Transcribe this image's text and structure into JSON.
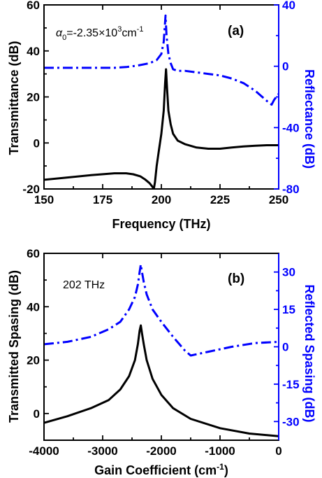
{
  "chart_data": [
    {
      "type": "line",
      "panel_label": "(a)",
      "annotation": {
        "greek": "α",
        "sub": "0",
        "pre": "=-2.35×10",
        "sup": "3",
        "unit": "cm",
        "unit_sup": "-1"
      },
      "xlabel": "Frequency (THz)",
      "ylabel": "Transmittance (dB)",
      "ylabel_right": "Reflectance (dB)",
      "xlim": [
        150,
        250
      ],
      "ylim": [
        -20,
        60
      ],
      "ylim_right": [
        -80,
        40
      ],
      "xticks": [
        "150",
        "175",
        "200",
        "225",
        "250"
      ],
      "yticks": [
        "-20",
        "0",
        "20",
        "40",
        "60"
      ],
      "yticks_right": [
        "-80",
        "-40",
        "0",
        "40"
      ],
      "series": [
        {
          "axis": "left",
          "style": "solid",
          "color": "#000000",
          "x": [
            150,
            160,
            170,
            180,
            185,
            188,
            191,
            193,
            195,
            196,
            196.8,
            197.3,
            198,
            199,
            200,
            201,
            201.6,
            202,
            202.4,
            203,
            204,
            205,
            207,
            210,
            215,
            220,
            225,
            230,
            235,
            240,
            245,
            250
          ],
          "y": [
            -16,
            -15,
            -14,
            -13.2,
            -13.2,
            -13.6,
            -14.5,
            -15.8,
            -17.5,
            -18.8,
            -20,
            -17,
            -10,
            -3,
            4,
            14,
            26,
            32,
            24,
            14,
            8,
            4,
            1,
            -0.5,
            -2,
            -2.5,
            -2.5,
            -2,
            -1.5,
            -1.2,
            -1,
            -1
          ]
        },
        {
          "axis": "right",
          "style": "dashdot",
          "color": "#0000ff",
          "x": [
            150,
            160,
            170,
            180,
            185,
            190,
            195,
            198,
            200,
            201,
            201.8,
            202.2,
            203,
            204,
            205,
            207,
            210,
            215,
            220,
            225,
            230,
            235,
            240,
            243,
            246,
            247,
            248,
            250
          ],
          "y": [
            -1,
            -1,
            -1,
            -1,
            -0.5,
            0.5,
            2,
            4,
            8,
            16,
            33,
            20,
            8,
            2,
            -2,
            -3,
            -3,
            -4,
            -5,
            -6,
            -8,
            -11,
            -16,
            -20,
            -24,
            -25,
            -22,
            -18
          ]
        }
      ]
    },
    {
      "type": "line",
      "panel_label": "(b)",
      "annotation_text": "202 THz",
      "xlabel_pre": "Gain Coefficient (cm",
      "xlabel_sup": "-1",
      "xlabel_post": ")",
      "ylabel": "Transmitted Spasing (dB)",
      "ylabel_right": "Reflected Spasing (dB)",
      "xlim": [
        -4000,
        0
      ],
      "ylim": [
        -10,
        60
      ],
      "ylim_right": [
        -37.5,
        37.5
      ],
      "xticks": [
        "-4000",
        "-3000",
        "-2000",
        "-1000",
        "0"
      ],
      "yticks": [
        "0",
        "20",
        "40",
        "60"
      ],
      "yticks_right": [
        "-30",
        "-15",
        "0",
        "15",
        "30"
      ],
      "series": [
        {
          "axis": "left",
          "style": "solid",
          "color": "#000000",
          "x": [
            -4000,
            -3600,
            -3200,
            -2900,
            -2700,
            -2550,
            -2450,
            -2400,
            -2370,
            -2350,
            -2330,
            -2300,
            -2250,
            -2150,
            -2000,
            -1800,
            -1500,
            -1000,
            -500,
            0
          ],
          "y": [
            -3.5,
            -1,
            2,
            5,
            9,
            14,
            20,
            26,
            31,
            33,
            30,
            26,
            20,
            13,
            7,
            2,
            -2,
            -5.5,
            -7.5,
            -8.5
          ]
        },
        {
          "axis": "right",
          "style": "dashdot",
          "color": "#0000ff",
          "x": [
            -4000,
            -3600,
            -3200,
            -2900,
            -2700,
            -2550,
            -2450,
            -2400,
            -2370,
            -2350,
            -2330,
            -2300,
            -2250,
            -2150,
            -2000,
            -1800,
            -1600,
            -1500,
            -1200,
            -800,
            -400,
            0
          ],
          "y": [
            1,
            2,
            4,
            7,
            10,
            15,
            20,
            25,
            30,
            33,
            30,
            26,
            21,
            15,
            10,
            4,
            -1.5,
            -3.5,
            -2,
            0,
            1.5,
            2
          ]
        }
      ]
    }
  ]
}
